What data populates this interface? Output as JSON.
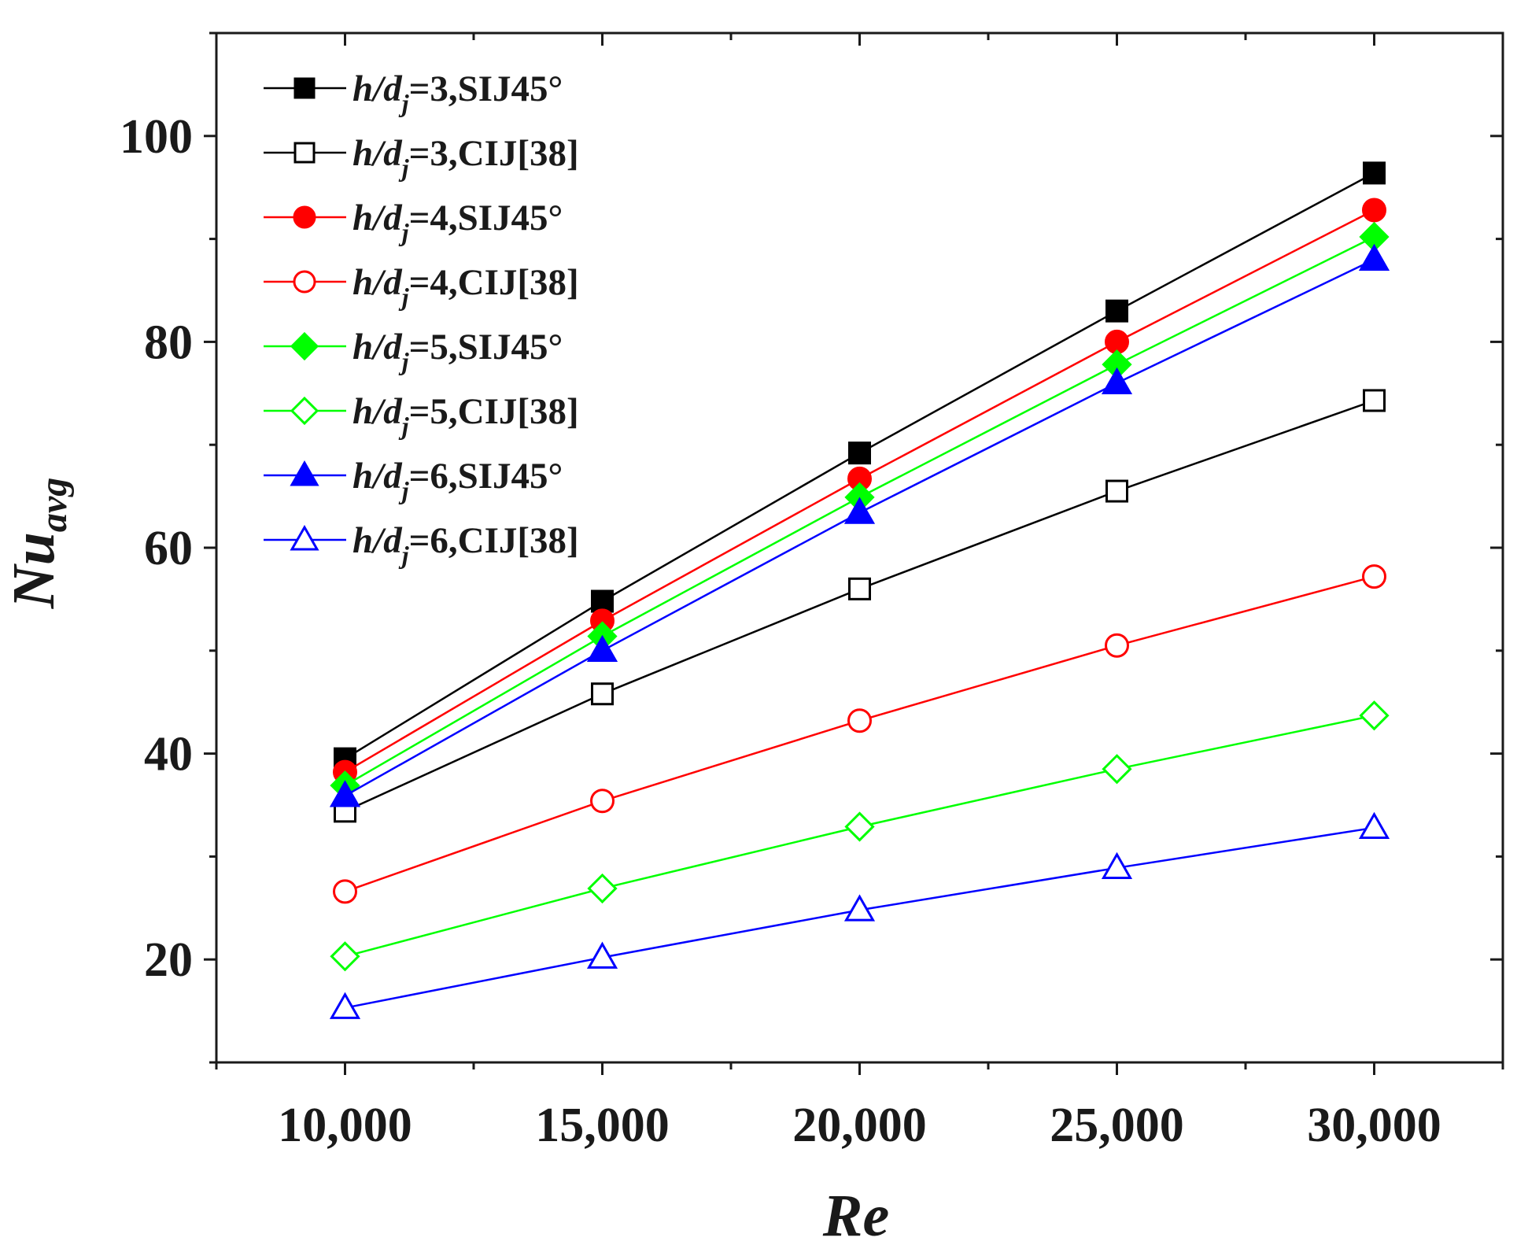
{
  "chart_data": {
    "type": "line",
    "title": "",
    "xlabel": "Re",
    "ylabel": "Nu",
    "ylabel_sub": "avg",
    "x": [
      10000,
      15000,
      20000,
      25000,
      30000
    ],
    "x_tick_labels": [
      "10,000",
      "15,000",
      "20,000",
      "25,000",
      "30,000"
    ],
    "xlim": [
      7500,
      32500
    ],
    "ylim": [
      10,
      110
    ],
    "y_ticks": [
      20,
      40,
      60,
      80,
      100
    ],
    "y_tick_labels": [
      "20",
      "40",
      "60",
      "80",
      "100"
    ],
    "grid": false,
    "legend_position": "top-left",
    "series": [
      {
        "name": "h/dj=3,SIJ45°",
        "legend": {
          "pre": "h/d",
          "sub": "j",
          "post": "=3,SIJ45°"
        },
        "color": "#000000",
        "marker": "square",
        "filled": true,
        "values": [
          39.5,
          54.8,
          69.2,
          83.0,
          96.4
        ]
      },
      {
        "name": "h/dj=3,CIJ[38]",
        "legend": {
          "pre": "h/d",
          "sub": "j",
          "post": "=3,CIJ[38]"
        },
        "color": "#000000",
        "marker": "square",
        "filled": false,
        "values": [
          34.4,
          45.8,
          56.0,
          65.5,
          74.3
        ]
      },
      {
        "name": "h/dj=4,SIJ45°",
        "legend": {
          "pre": "h/d",
          "sub": "j",
          "post": "=4,SIJ45°"
        },
        "color": "#ff0000",
        "marker": "circle",
        "filled": true,
        "values": [
          38.2,
          52.9,
          66.7,
          80.0,
          92.8
        ]
      },
      {
        "name": "h/dj=4,CIJ[38]",
        "legend": {
          "pre": "h/d",
          "sub": "j",
          "post": "=4,CIJ[38]"
        },
        "color": "#ff0000",
        "marker": "circle",
        "filled": false,
        "values": [
          26.6,
          35.4,
          43.2,
          50.5,
          57.2
        ]
      },
      {
        "name": "h/dj=5,SIJ45°",
        "legend": {
          "pre": "h/d",
          "sub": "j",
          "post": "=5,SIJ45°"
        },
        "color": "#00ff00",
        "marker": "diamond",
        "filled": true,
        "values": [
          36.9,
          51.4,
          64.9,
          77.8,
          90.2
        ]
      },
      {
        "name": "h/dj=5,CIJ[38]",
        "legend": {
          "pre": "h/d",
          "sub": "j",
          "post": "=5,CIJ[38]"
        },
        "color": "#00ff00",
        "marker": "diamond",
        "filled": false,
        "values": [
          20.3,
          26.9,
          32.9,
          38.5,
          43.7
        ]
      },
      {
        "name": "h/dj=6,SIJ45°",
        "legend": {
          "pre": "h/d",
          "sub": "j",
          "post": "=6,SIJ45°"
        },
        "color": "#0000ff",
        "marker": "triangle",
        "filled": true,
        "values": [
          35.9,
          50.0,
          63.4,
          76.0,
          88.0
        ]
      },
      {
        "name": "h/dj=6,CIJ[38]",
        "legend": {
          "pre": "h/d",
          "sub": "j",
          "post": "=6,CIJ[38]"
        },
        "color": "#0000ff",
        "marker": "triangle",
        "filled": false,
        "values": [
          15.3,
          20.2,
          24.8,
          28.9,
          32.8
        ]
      }
    ]
  }
}
